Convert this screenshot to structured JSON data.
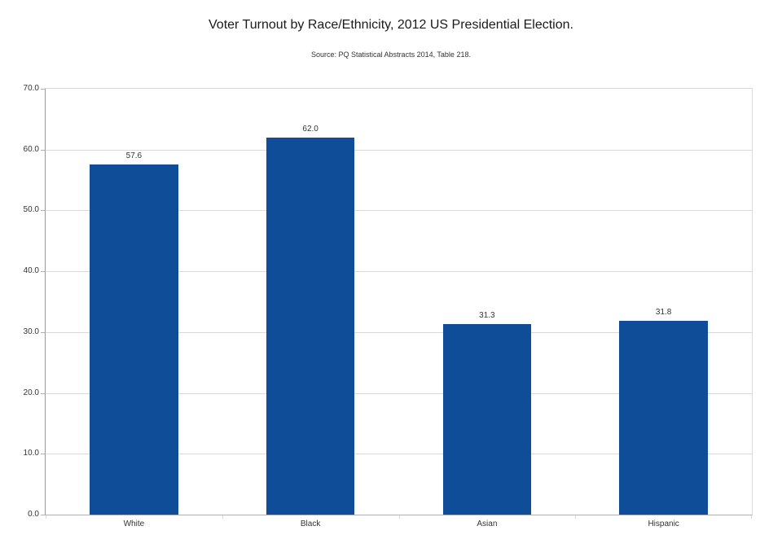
{
  "chart_data": {
    "type": "bar",
    "title": "Voter Turnout by Race/Ethnicity, 2012 US Presidential Election.",
    "subtitle": "Source: PQ Statistical Abstracts 2014, Table 218.",
    "categories": [
      "White",
      "Black",
      "Asian",
      "Hispanic"
    ],
    "values": [
      57.6,
      62.0,
      31.3,
      31.8
    ],
    "value_labels": [
      "57.6",
      "62.0",
      "31.3",
      "31.8"
    ],
    "xlabel": "",
    "ylabel": "",
    "ylim": [
      0,
      70
    ],
    "y_tick_step": 10,
    "y_tick_labels": [
      "0.0",
      "10.0",
      "20.0",
      "30.0",
      "40.0",
      "50.0",
      "60.0",
      "70.0"
    ],
    "grid": "horizontal",
    "legend_position": "none",
    "bar_color": "#0F4D99",
    "gridline_color": "#d9d9d9",
    "axis_tick_color": "#b0b0b0",
    "label_text_color": "#333333"
  }
}
